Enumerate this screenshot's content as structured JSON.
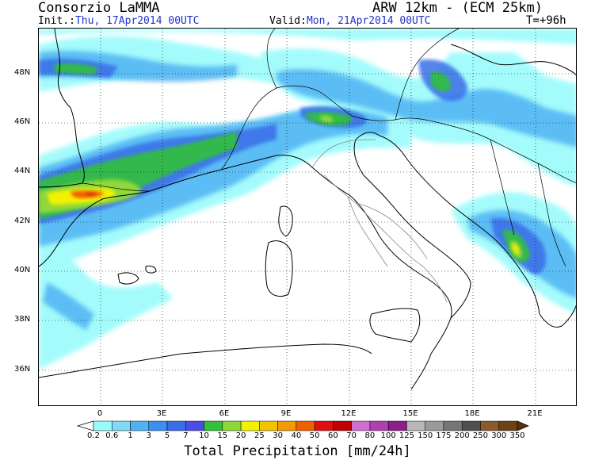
{
  "header": {
    "org": "Consorzio LaMMA",
    "model": "ARW 12km - (ECM 25km)",
    "init_label": "Init.:",
    "init_value": "Thu, 17Apr2014 00UTC",
    "valid_label": "Valid:",
    "valid_value": "Mon, 21Apr2014 00UTC",
    "step": "T=+96h"
  },
  "map": {
    "lat_labels": [
      "48N",
      "46N",
      "44N",
      "42N",
      "40N",
      "38N",
      "36N"
    ],
    "lon_labels": [
      "0",
      "3E",
      "6E",
      "9E",
      "12E",
      "15E",
      "18E",
      "21E"
    ],
    "grid": "dotted"
  },
  "legend": {
    "title": "Total Precipitation [mm/24h]",
    "levels": [
      "0.2",
      "0.6",
      "1",
      "3",
      "5",
      "7",
      "10",
      "15",
      "20",
      "25",
      "30",
      "40",
      "50",
      "60",
      "70",
      "80",
      "100",
      "125",
      "150",
      "175",
      "200",
      "250",
      "300",
      "350"
    ],
    "colors": [
      "#9bfbfb",
      "#7fd9f7",
      "#4fb3f3",
      "#3c8ff0",
      "#3a6ee8",
      "#4a4ee6",
      "#33c03a",
      "#8fd83a",
      "#f2f200",
      "#f2c400",
      "#f29a00",
      "#f06000",
      "#e01010",
      "#c00000",
      "#d070d0",
      "#b040b0",
      "#8e1e8e",
      "#b8b8b8",
      "#9a9a9a",
      "#767676",
      "#505050",
      "#8b5a2b",
      "#6e4119",
      "#5a300e"
    ]
  }
}
